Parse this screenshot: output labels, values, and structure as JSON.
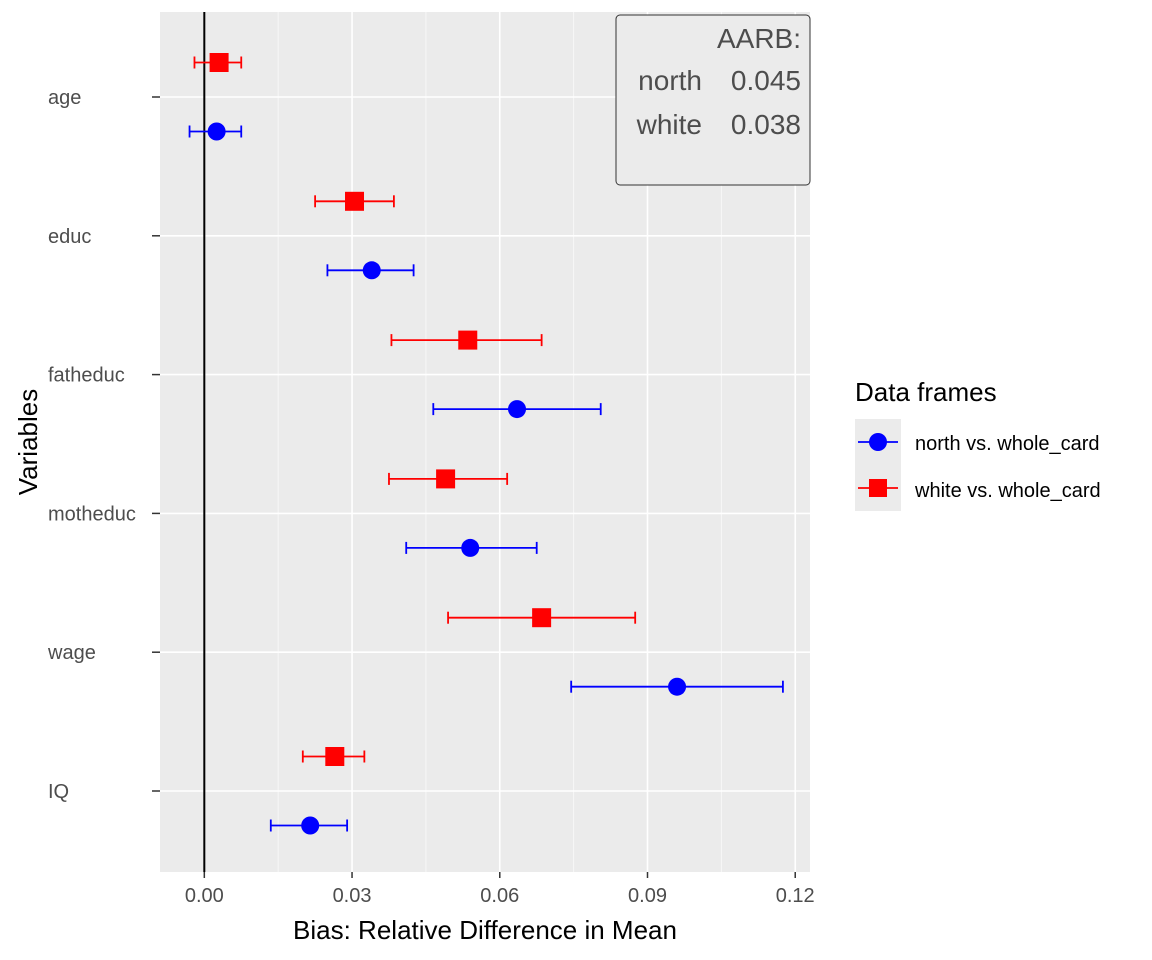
{
  "chart_data": {
    "type": "scatter",
    "subtype": "dot-and-whisker",
    "orientation": "horizontal",
    "xlabel": "Bias: Relative Difference in Mean",
    "ylabel": "Variables",
    "xlim": [
      -0.009,
      0.123
    ],
    "xticks": [
      0.0,
      0.03,
      0.06,
      0.09,
      0.12
    ],
    "xtick_labels": [
      "0.00",
      "0.03",
      "0.06",
      "0.09",
      "0.12"
    ],
    "categories": [
      "age",
      "educ",
      "fatheduc",
      "motheduc",
      "wage",
      "IQ"
    ],
    "reference_line_x": 0,
    "grid": true,
    "series": [
      {
        "name": "north vs. whole_card",
        "color": "#0000ff",
        "marker": "circle",
        "values": [
          0.0025,
          0.034,
          0.0635,
          0.054,
          0.096,
          0.0215
        ],
        "lower": [
          -0.003,
          0.025,
          0.0465,
          0.041,
          0.0745,
          0.0135
        ],
        "upper": [
          0.0075,
          0.0425,
          0.0805,
          0.0675,
          0.1175,
          0.029
        ]
      },
      {
        "name": "white vs. whole_card",
        "color": "#ff0000",
        "marker": "square",
        "values": [
          0.003,
          0.0305,
          0.0535,
          0.049,
          0.0685,
          0.0265
        ],
        "lower": [
          -0.002,
          0.0225,
          0.038,
          0.0375,
          0.0495,
          0.02
        ],
        "upper": [
          0.0075,
          0.0385,
          0.0685,
          0.0615,
          0.0875,
          0.0325
        ]
      }
    ],
    "legend": {
      "title": "Data frames",
      "placement": "right",
      "items": [
        "north vs. whole_card",
        "white vs. whole_card"
      ]
    },
    "annotation": {
      "placement": "top-right",
      "title": "AARB:",
      "rows": [
        {
          "label": "north",
          "value": "0.045"
        },
        {
          "label": "white",
          "value": "0.038"
        }
      ]
    }
  }
}
